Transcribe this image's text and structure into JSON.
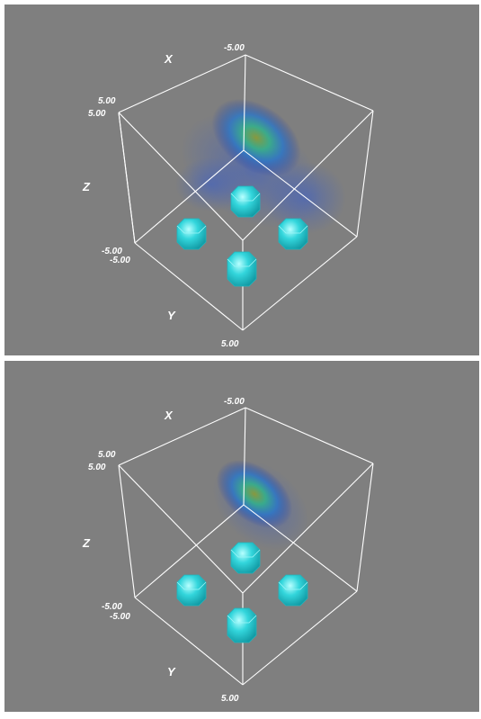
{
  "panels": [
    {
      "axes": {
        "x": {
          "label": "X",
          "tick": "-5.00"
        },
        "z": {
          "label": "Z",
          "tick_top": "5.00",
          "tick_bottom": "-5.00"
        },
        "y": {
          "label": "Y",
          "tick_start": "5.00",
          "tick_near": "-5.00",
          "tick_end": "5.00"
        }
      },
      "cube_color": "#ffffff",
      "markers": {
        "count": 4,
        "color": "#33d6dc",
        "icon": "rounded-cube-icon"
      },
      "volume": {
        "colormap": [
          "#1f3aa8",
          "#2a77c9",
          "#35b08a",
          "#8a9a3a"
        ],
        "shape": "spread"
      }
    },
    {
      "axes": {
        "x": {
          "label": "X",
          "tick": "-5.00"
        },
        "z": {
          "label": "Z",
          "tick_top": "5.00",
          "tick_bottom": "-5.00"
        },
        "y": {
          "label": "Y",
          "tick_start": "5.00",
          "tick_near": "-5.00",
          "tick_end": "5.00"
        }
      },
      "cube_color": "#ffffff",
      "markers": {
        "count": 4,
        "color": "#33d6dc",
        "icon": "rounded-cube-icon"
      },
      "volume": {
        "colormap": [
          "#1f3aa8",
          "#2a77c9",
          "#35b08a",
          "#8a9a3a"
        ],
        "shape": "compact"
      }
    }
  ]
}
